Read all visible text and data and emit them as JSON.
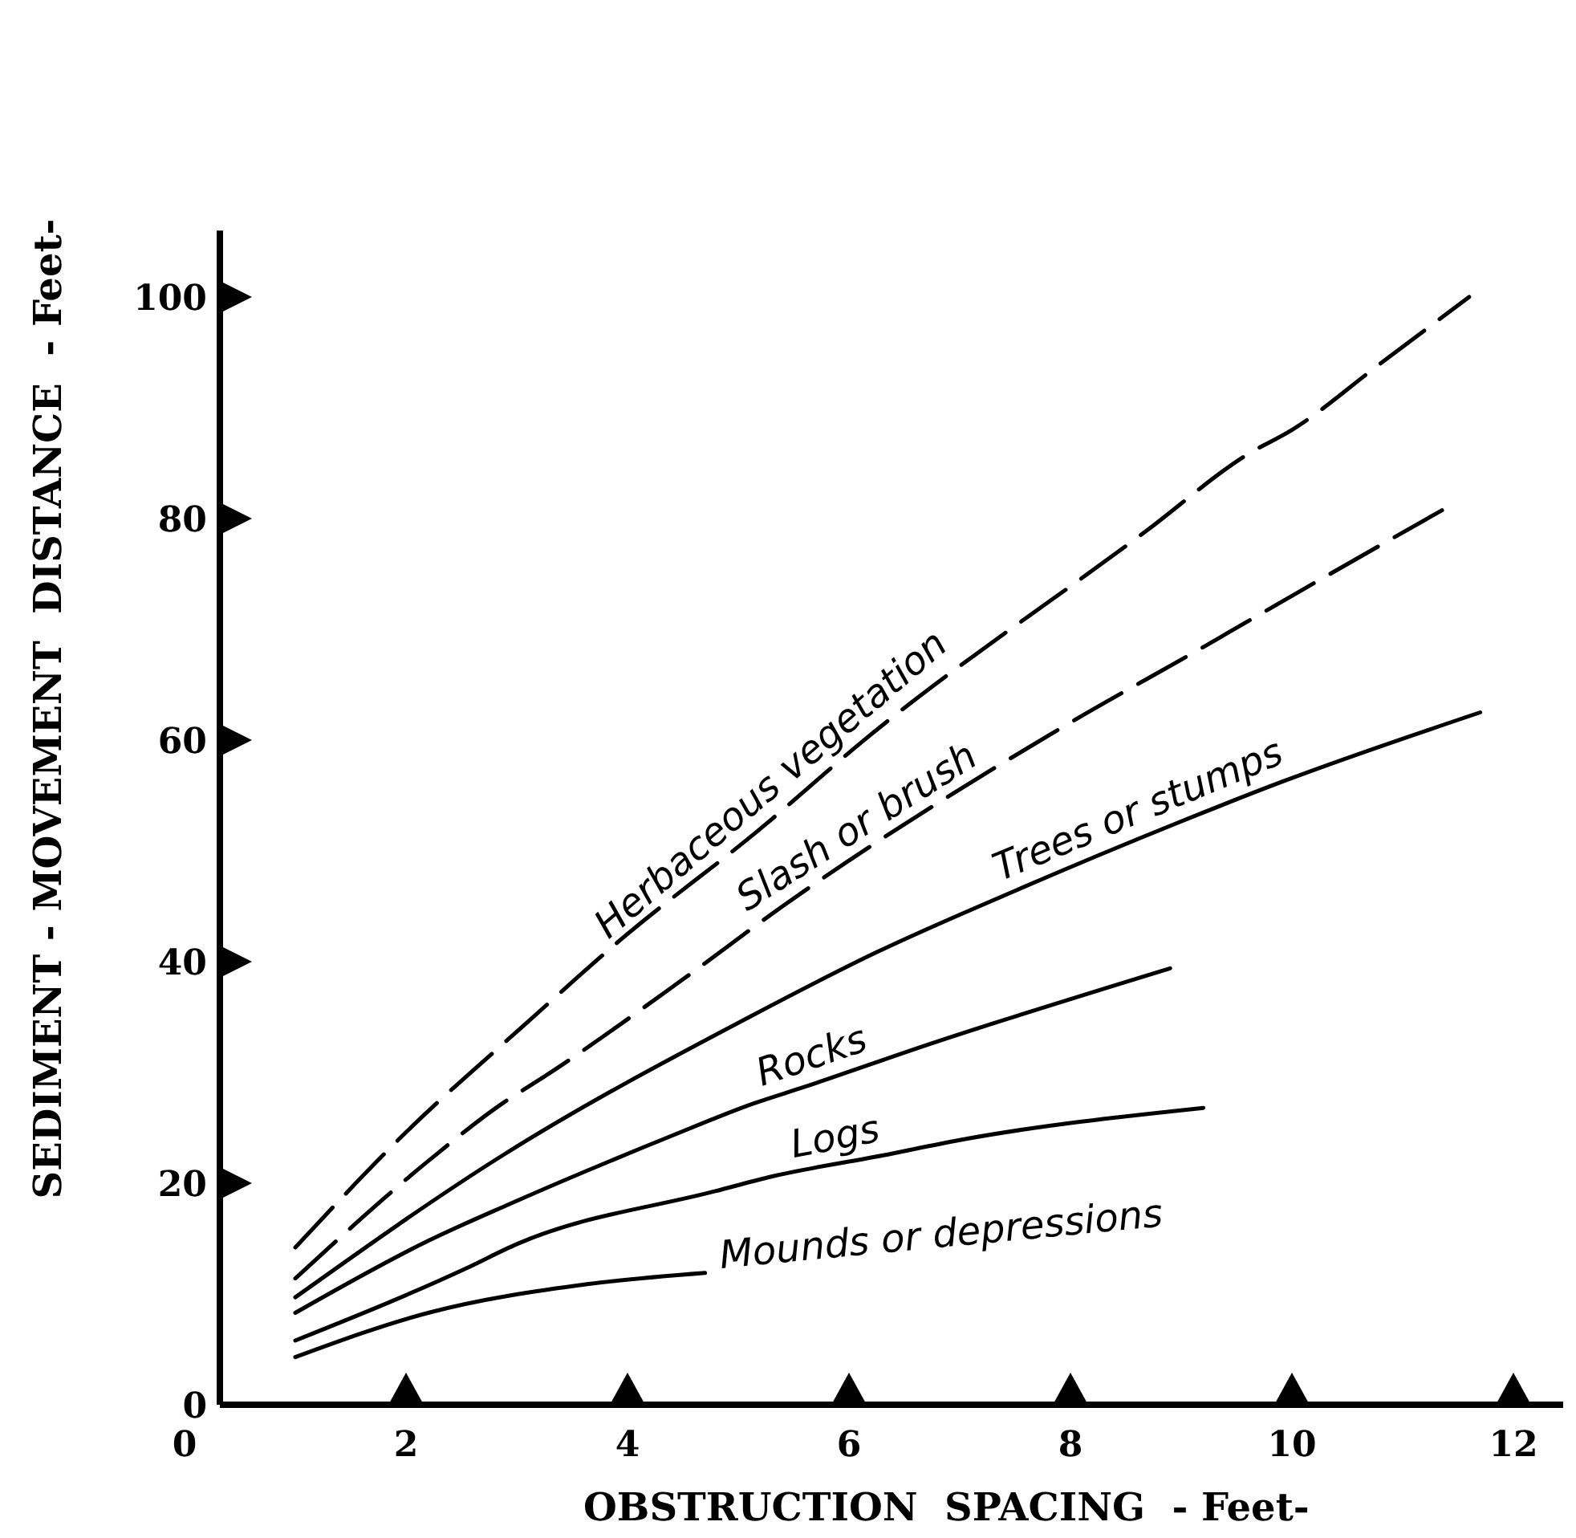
{
  "chart_data": {
    "type": "line",
    "xlabel": "OBSTRUCTION  SPACING  - Feet-",
    "ylabel": "SEDIMENT - MOVEMENT  DISTANCE  - Feet-",
    "xlim": [
      0,
      12.6
    ],
    "ylim": [
      0,
      106
    ],
    "xticks": [
      0,
      2,
      4,
      6,
      8,
      10,
      12
    ],
    "yticks": [
      0,
      20,
      40,
      60,
      80,
      100
    ],
    "grid": false,
    "marker": "none",
    "series": [
      {
        "name": "Herbaceous vegetation",
        "color": "#000000",
        "line_style": "dashed",
        "x": [
          1,
          2,
          3.07,
          3.94,
          5.2,
          6.1,
          8.7,
          9.6,
          10,
          10.8,
          11.6
        ],
        "values": [
          14.2,
          24.6,
          34.3,
          42,
          52,
          59.7,
          79,
          85.8,
          88,
          94,
          100
        ]
      },
      {
        "name": "Slash or brush",
        "color": "#000000",
        "line_style": "dashed",
        "x": [
          1,
          2.2,
          2.87,
          3.26,
          4.5,
          5.4,
          7.9,
          9.2,
          10.1,
          11.4
        ],
        "values": [
          11.4,
          22,
          27.2,
          29.7,
          38.4,
          45,
          61,
          68.4,
          73.6,
          81
        ]
      },
      {
        "name": "Trees or stumps",
        "color": "#000000",
        "line_style": "solid",
        "x": [
          1,
          2.87,
          5.1,
          6.26,
          7.5,
          8.96,
          9.9,
          11.7
        ],
        "values": [
          9.7,
          22.5,
          35,
          40.9,
          46.4,
          52.5,
          56.2,
          62.5
        ]
      },
      {
        "name": "Rocks",
        "color": "#000000",
        "line_style": "solid",
        "x": [
          1,
          2.2,
          2.93,
          4.38,
          5.14,
          5.6,
          6.74,
          8.9
        ],
        "values": [
          8.3,
          14.8,
          18.1,
          24.2,
          27.2,
          28.7,
          32.6,
          39.4
        ]
      },
      {
        "name": "Logs",
        "color": "#000000",
        "line_style": "solid",
        "x": [
          1,
          2.54,
          3,
          4.8,
          5.3,
          6.3,
          7,
          9.2
        ],
        "values": [
          5.8,
          12.3,
          14.5,
          19.3,
          20.6,
          22.5,
          23.9,
          26.8
        ]
      },
      {
        "name": "Mounds or depressions",
        "color": "#000000",
        "line_style": "solid",
        "x": [
          1,
          2.2,
          3.65,
          4.7
        ],
        "values": [
          4.3,
          8.3,
          10.9,
          11.9
        ]
      }
    ]
  }
}
